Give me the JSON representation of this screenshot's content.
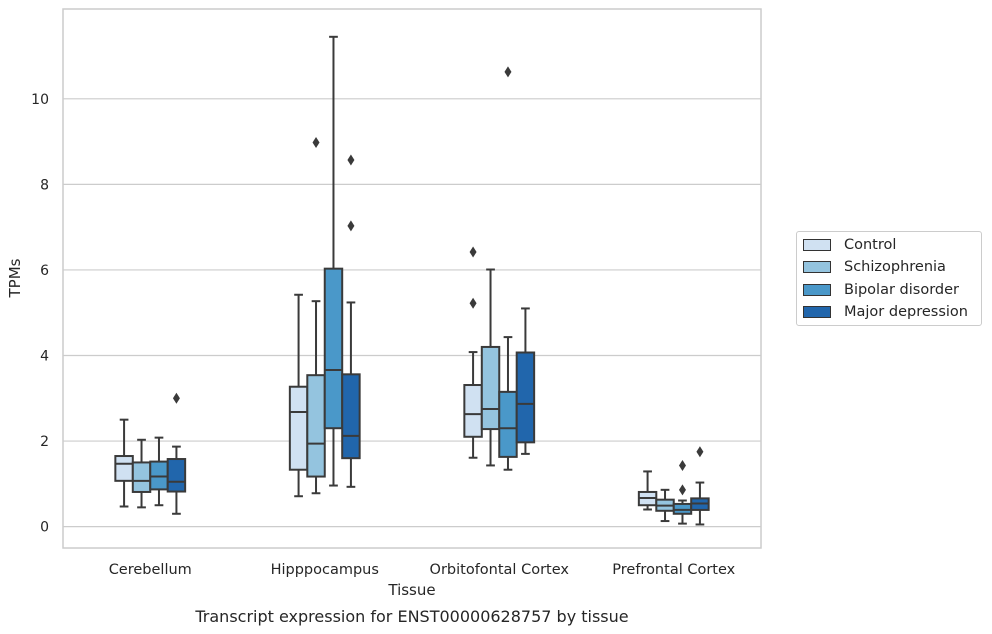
{
  "chart_data": {
    "type": "box",
    "caption": "Transcript expression for ENST00000628757 by tissue",
    "xlabel": "Tissue",
    "ylabel": "TPMs",
    "ylim": [
      -0.5,
      12.1
    ],
    "yticks": [
      0,
      2,
      4,
      6,
      8,
      10
    ],
    "grid": "horizontal",
    "legend_position": "right",
    "categories": [
      "Cerebellum",
      "Hipppocampus",
      "Orbitofontal Cortex",
      "Prefrontal Cortex"
    ],
    "series": [
      {
        "name": "Control",
        "color": "#d0e1f2",
        "boxes": [
          {
            "whisker_low": 0.47,
            "q1": 1.07,
            "median": 1.47,
            "q3": 1.65,
            "whisker_high": 2.5,
            "outliers": []
          },
          {
            "whisker_low": 0.71,
            "q1": 1.33,
            "median": 2.68,
            "q3": 3.27,
            "whisker_high": 5.42,
            "outliers": []
          },
          {
            "whisker_low": 1.61,
            "q1": 2.1,
            "median": 2.63,
            "q3": 3.31,
            "whisker_high": 4.08,
            "outliers": [
              5.22,
              6.42
            ]
          },
          {
            "whisker_low": 0.4,
            "q1": 0.5,
            "median": 0.67,
            "q3": 0.81,
            "whisker_high": 1.29,
            "outliers": []
          }
        ]
      },
      {
        "name": "Schizophrenia",
        "color": "#94c4df",
        "boxes": [
          {
            "whisker_low": 0.45,
            "q1": 0.81,
            "median": 1.07,
            "q3": 1.5,
            "whisker_high": 2.03,
            "outliers": []
          },
          {
            "whisker_low": 0.78,
            "q1": 1.17,
            "median": 1.94,
            "q3": 3.54,
            "whisker_high": 5.27,
            "outliers": [
              8.98
            ]
          },
          {
            "whisker_low": 1.43,
            "q1": 2.28,
            "median": 2.75,
            "q3": 4.2,
            "whisker_high": 6.01,
            "outliers": []
          },
          {
            "whisker_low": 0.13,
            "q1": 0.37,
            "median": 0.49,
            "q3": 0.63,
            "whisker_high": 0.86,
            "outliers": []
          }
        ]
      },
      {
        "name": "Bipolar disorder",
        "color": "#4a98c9",
        "boxes": [
          {
            "whisker_low": 0.5,
            "q1": 0.87,
            "median": 1.17,
            "q3": 1.52,
            "whisker_high": 2.08,
            "outliers": []
          },
          {
            "whisker_low": 0.96,
            "q1": 2.3,
            "median": 3.66,
            "q3": 6.03,
            "whisker_high": 11.45,
            "outliers": []
          },
          {
            "whisker_low": 1.33,
            "q1": 1.63,
            "median": 2.3,
            "q3": 3.15,
            "whisker_high": 4.43,
            "outliers": [
              10.63
            ]
          },
          {
            "whisker_low": 0.07,
            "q1": 0.3,
            "median": 0.39,
            "q3": 0.53,
            "whisker_high": 0.61,
            "outliers": [
              0.86,
              1.43
            ]
          }
        ]
      },
      {
        "name": "Major depression",
        "color": "#2166ac",
        "boxes": [
          {
            "whisker_low": 0.3,
            "q1": 0.82,
            "median": 1.05,
            "q3": 1.58,
            "whisker_high": 1.87,
            "outliers": [
              3.0
            ]
          },
          {
            "whisker_low": 0.93,
            "q1": 1.6,
            "median": 2.12,
            "q3": 3.56,
            "whisker_high": 5.24,
            "outliers": [
              7.03,
              8.57
            ]
          },
          {
            "whisker_low": 1.7,
            "q1": 1.97,
            "median": 2.87,
            "q3": 4.07,
            "whisker_high": 5.1,
            "outliers": []
          },
          {
            "whisker_low": 0.05,
            "q1": 0.39,
            "median": 0.54,
            "q3": 0.66,
            "whisker_high": 1.03,
            "outliers": [
              1.75
            ]
          }
        ]
      }
    ]
  }
}
